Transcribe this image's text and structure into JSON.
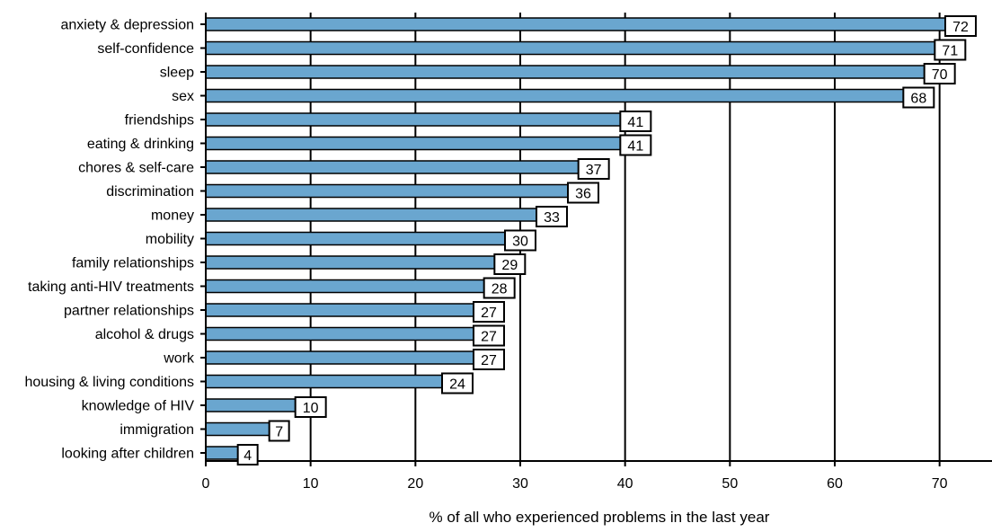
{
  "chart_data": {
    "type": "bar",
    "orientation": "horizontal",
    "xlabel": "% of all who experienced problems in the last year",
    "ylabel": "",
    "xlim": [
      0,
      75
    ],
    "xticks": [
      0,
      10,
      20,
      30,
      40,
      50,
      60,
      70
    ],
    "xtick_labels": [
      "0",
      "10",
      "20",
      "30",
      "40",
      "50",
      "60",
      "70"
    ],
    "grid": "vertical",
    "bar_color": "#6aa6cf",
    "categories": [
      "anxiety & depression",
      "self-confidence",
      "sleep",
      "sex",
      "friendships",
      "eating & drinking",
      "chores & self-care",
      "discrimination",
      "money",
      "mobility",
      "family relationships",
      "taking anti-HIV treatments",
      "partner relationships",
      "alcohol & drugs",
      "work",
      "housing & living conditions",
      "knowledge of HIV",
      "immigration",
      "looking after children"
    ],
    "values": [
      72,
      71,
      70,
      68,
      41,
      41,
      37,
      36,
      33,
      30,
      29,
      28,
      27,
      27,
      27,
      24,
      10,
      7,
      4
    ],
    "value_labels": [
      "72",
      "71",
      "70",
      "68",
      "41",
      "41",
      "37",
      "36",
      "33",
      "30",
      "29",
      "28",
      "27",
      "27",
      "27",
      "24",
      "10",
      "7",
      "4"
    ]
  }
}
